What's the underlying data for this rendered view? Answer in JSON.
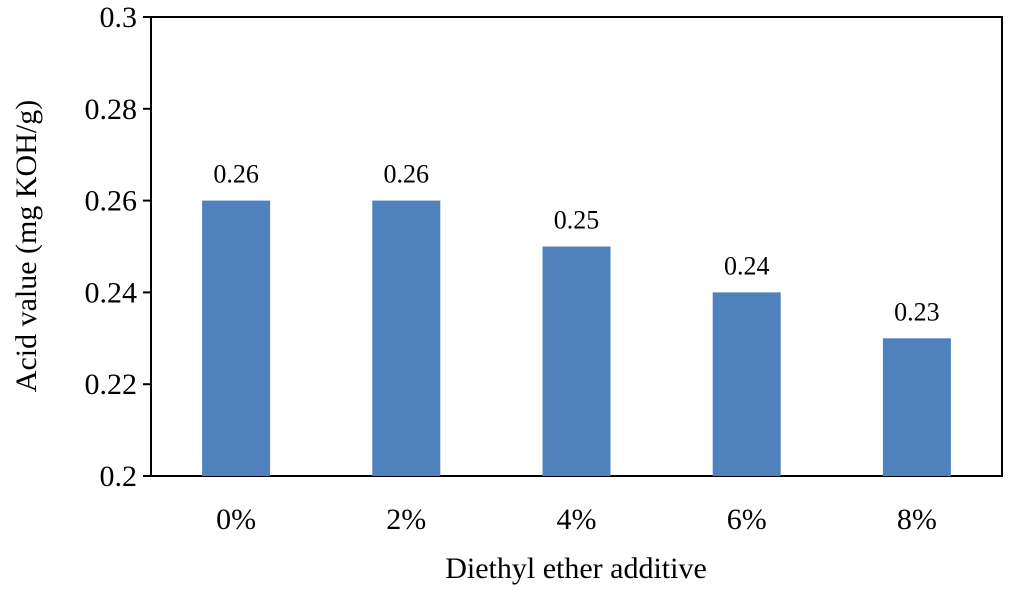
{
  "chart_data": {
    "type": "bar",
    "title": "",
    "xlabel": "Diethyl ether additive",
    "ylabel": "Acid value (mg KOH/g)",
    "categories": [
      "0%",
      "2%",
      "4%",
      "6%",
      "8%"
    ],
    "values": [
      0.26,
      0.26,
      0.25,
      0.24,
      0.23
    ],
    "data_labels": [
      "0.26",
      "0.26",
      "0.25",
      "0.24",
      "0.23"
    ],
    "ylim": [
      0.2,
      0.3
    ],
    "yticks": [
      0.2,
      0.22,
      0.24,
      0.26,
      0.28,
      0.3
    ],
    "ytick_labels": [
      "0.2",
      "0.22",
      "0.24",
      "0.26",
      "0.28",
      "0.3"
    ],
    "grid": false,
    "legend": "none",
    "bar_color": "#4F81BD"
  }
}
